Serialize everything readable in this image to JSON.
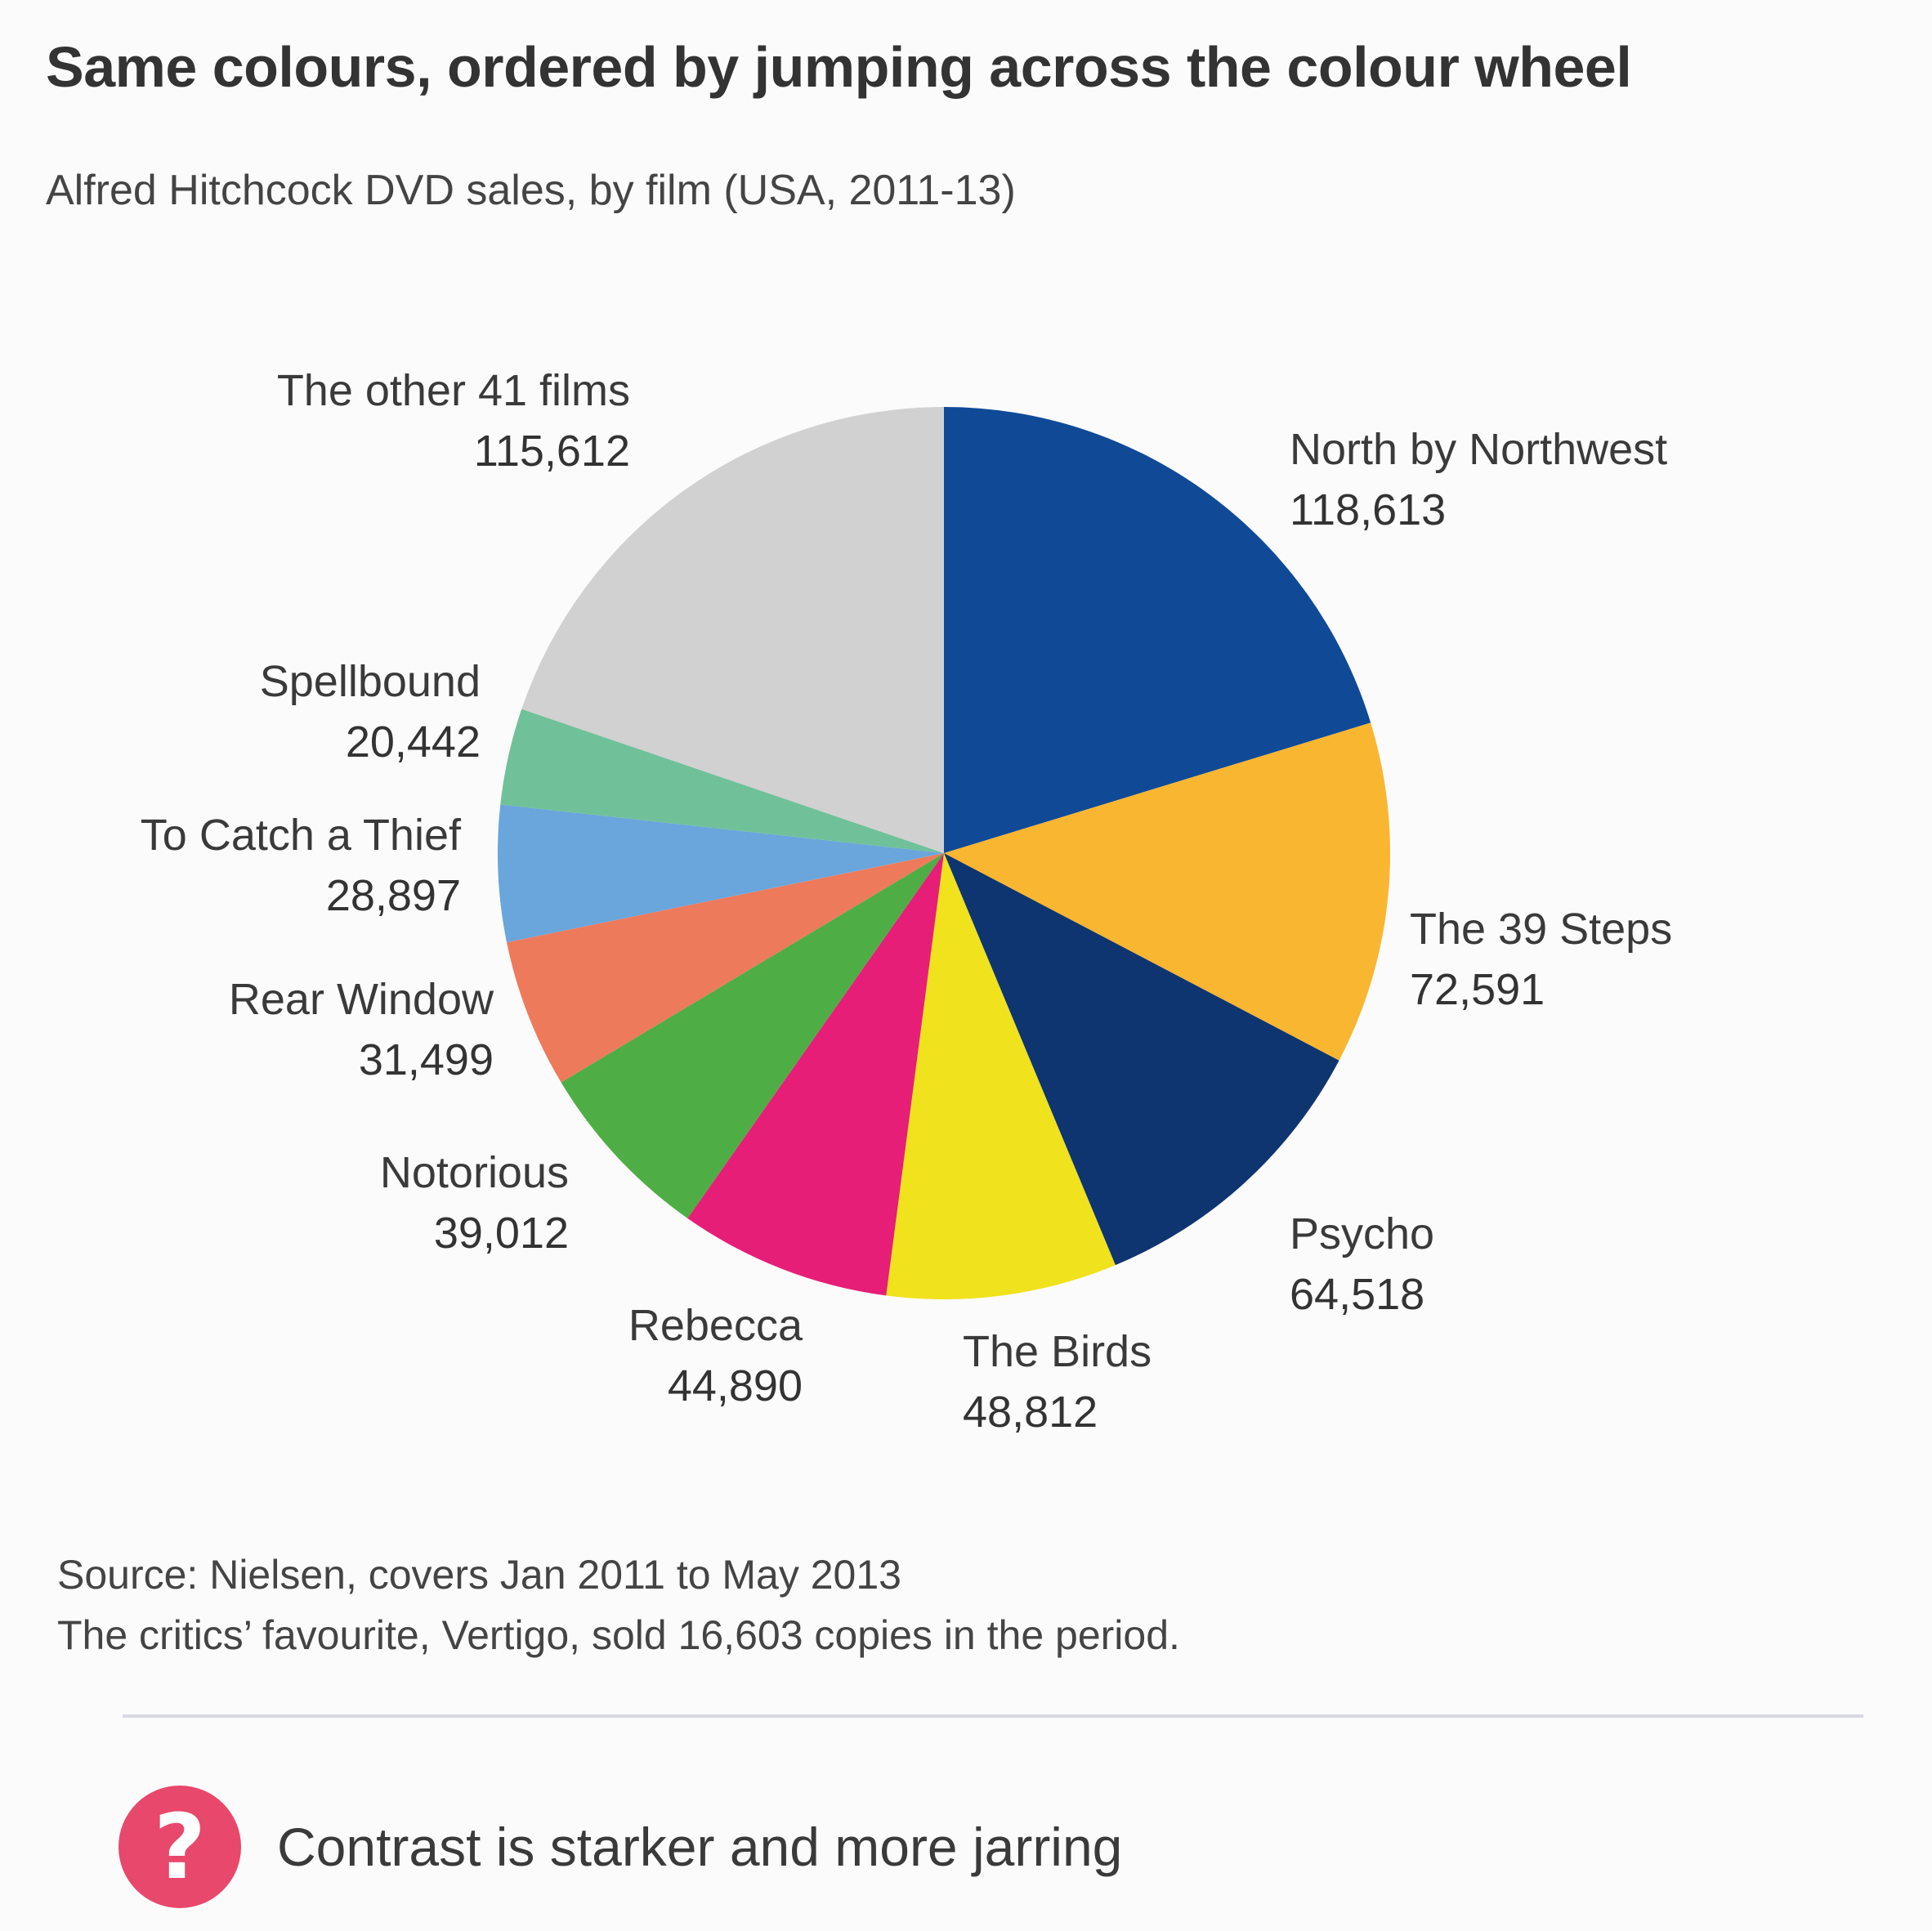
{
  "title": "Same colours, ordered by jumping across the colour wheel",
  "subtitle": "Alfred Hitchcock DVD sales, by film (USA, 2011-13)",
  "chart_data": {
    "type": "pie",
    "start": "12 o'clock, clockwise",
    "slices": [
      {
        "label": "North by Northwest",
        "value": 118613,
        "display": "118,613",
        "color": "#104a97"
      },
      {
        "label": "The 39 Steps",
        "value": 72591,
        "display": "72,591",
        "color": "#f9b630"
      },
      {
        "label": "Psycho",
        "value": 64518,
        "display": "64,518",
        "color": "#0f3570"
      },
      {
        "label": "The Birds",
        "value": 48812,
        "display": "48,812",
        "color": "#f0e21c"
      },
      {
        "label": "Rebecca",
        "value": 44890,
        "display": "44,890",
        "color": "#e61e78"
      },
      {
        "label": "Notorious",
        "value": 39012,
        "display": "39,012",
        "color": "#4eae45"
      },
      {
        "label": "Rear Window",
        "value": 31499,
        "display": "31,499",
        "color": "#ee7a5c"
      },
      {
        "label": "To Catch a Thief",
        "value": 28897,
        "display": "28,897",
        "color": "#6aa6db"
      },
      {
        "label": "Spellbound",
        "value": 20442,
        "display": "20,442",
        "color": "#70c199"
      },
      {
        "label": "The other 41 films",
        "value": 115612,
        "display": "115,612",
        "color": "#d1d1d1"
      }
    ]
  },
  "source": {
    "line1": "Source: Nielsen, covers Jan 2011 to May 2013",
    "line2": "The critics’ favourite, Vertigo, sold 16,603 copies in the period."
  },
  "verdict": {
    "badge": "?",
    "text": "Contrast is starker and more jarring",
    "badge_color": "#e8486b"
  }
}
